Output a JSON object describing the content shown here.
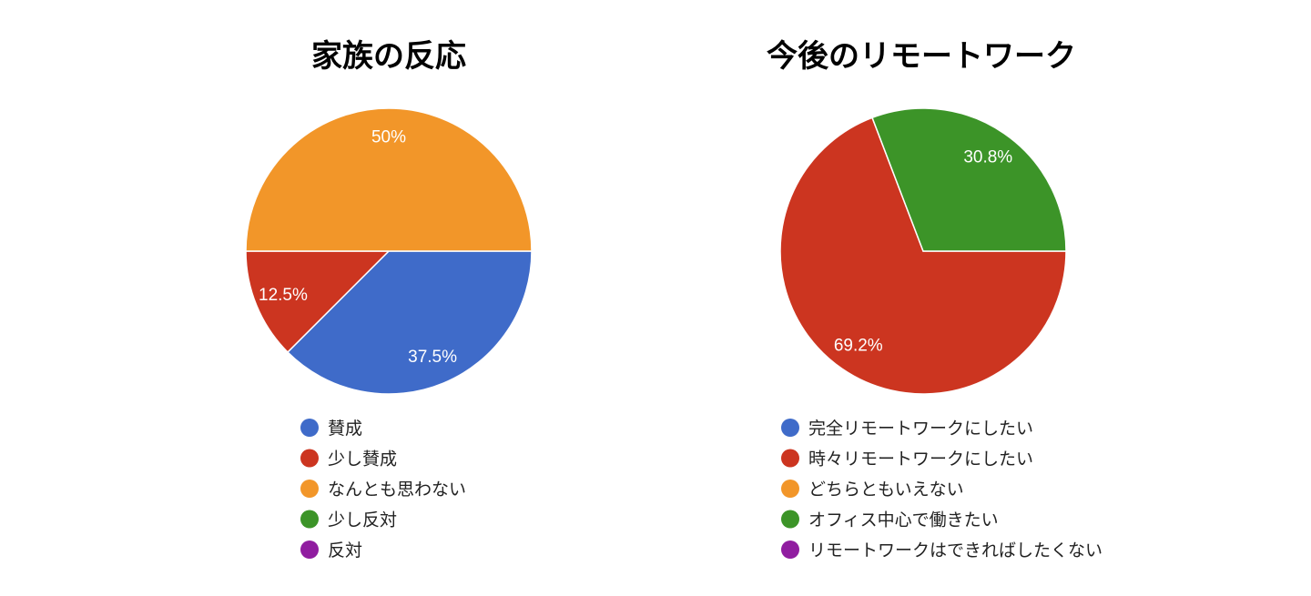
{
  "chart_data": [
    {
      "type": "pie",
      "title": "家族の反応",
      "categories": [
        "賛成",
        "少し賛成",
        "なんとも思わない",
        "少し反対",
        "反対"
      ],
      "values": [
        37.5,
        12.5,
        50,
        0,
        0
      ],
      "value_labels": [
        "37.5%",
        "12.5%",
        "50%",
        "",
        ""
      ],
      "colors": [
        "#3f6bc9",
        "#cc3520",
        "#f29629",
        "#3c9428",
        "#901da0"
      ],
      "legend_position": "bottom"
    },
    {
      "type": "pie",
      "title": "今後のリモートワーク",
      "categories": [
        "完全リモートワークにしたい",
        "時々リモートワークにしたい",
        "どちらともいえない",
        "オフィス中心で働きたい",
        "リモートワークはできればしたくない"
      ],
      "values": [
        0,
        69.2,
        0,
        30.8,
        0
      ],
      "value_labels": [
        "",
        "69.2%",
        "",
        "30.8%",
        ""
      ],
      "colors": [
        "#3f6bc9",
        "#cc3520",
        "#f29629",
        "#3c9428",
        "#901da0"
      ],
      "legend_position": "bottom"
    }
  ]
}
